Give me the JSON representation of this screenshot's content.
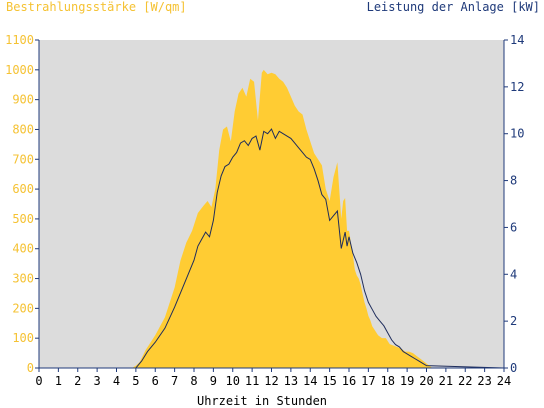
{
  "chart_data": {
    "type": "area",
    "left_axis_title": "Bestrahlungsstärke [W/qm]",
    "right_axis_title": "Leistung der Anlage [kW]",
    "xlabel": "Uhrzeit in Stunden",
    "xlim": [
      0,
      24
    ],
    "ylim_left": [
      0,
      1100
    ],
    "ylim_right": [
      0,
      14
    ],
    "x_ticks": [
      "0",
      "1",
      "2",
      "3",
      "4",
      "5",
      "6",
      "7",
      "8",
      "9",
      "10",
      "11",
      "12",
      "13",
      "14",
      "15",
      "16",
      "17",
      "18",
      "19",
      "20",
      "21",
      "22",
      "23",
      "24"
    ],
    "y_left_ticks": [
      "0",
      "100",
      "200",
      "300",
      "400",
      "500",
      "600",
      "700",
      "800",
      "900",
      "1000",
      "1100"
    ],
    "y_right_ticks": [
      "0",
      "2",
      "4",
      "6",
      "8",
      "10",
      "12",
      "14"
    ],
    "grid": false,
    "colors": {
      "plot_background": "#dcdcdc",
      "irradiance_fill": "#ffcc33",
      "power_line": "#1f2d5c",
      "left_axis_text": "#f5c233",
      "right_axis_text": "#1f3a7a",
      "axis_color": "#1f3a7a"
    },
    "series": [
      {
        "axis": "left",
        "style": "area",
        "x": [
          0,
          4.8,
          5.0,
          5.2,
          5.5,
          6.0,
          6.5,
          7.0,
          7.3,
          7.6,
          7.9,
          8.2,
          8.5,
          8.7,
          8.9,
          9.1,
          9.3,
          9.5,
          9.7,
          9.9,
          10.1,
          10.3,
          10.5,
          10.7,
          10.9,
          11.1,
          11.3,
          11.5,
          11.6,
          11.8,
          12.0,
          12.2,
          12.4,
          12.6,
          12.8,
          13.0,
          13.2,
          13.4,
          13.6,
          13.8,
          14.0,
          14.2,
          14.4,
          14.6,
          14.8,
          15.0,
          15.2,
          15.4,
          15.6,
          15.7,
          15.8,
          15.9,
          16.0,
          16.1,
          16.2,
          16.3,
          16.4,
          16.5,
          16.6,
          16.7,
          16.8,
          16.9,
          17.0,
          17.1,
          17.2,
          17.3,
          17.5,
          17.7,
          17.9,
          18.1,
          18.3,
          18.5,
          18.7,
          18.9,
          19.1,
          19.3,
          19.5,
          19.7,
          19.9,
          20.1,
          20.3,
          24
        ],
        "values": [
          0,
          0,
          8,
          20,
          60,
          110,
          170,
          270,
          360,
          420,
          460,
          520,
          545,
          560,
          540,
          600,
          730,
          800,
          810,
          760,
          860,
          920,
          940,
          910,
          970,
          960,
          830,
          990,
          1000,
          985,
          990,
          985,
          970,
          960,
          940,
          910,
          880,
          860,
          850,
          800,
          760,
          720,
          700,
          680,
          600,
          560,
          640,
          690,
          500,
          560,
          570,
          460,
          460,
          420,
          380,
          330,
          310,
          300,
          280,
          250,
          220,
          200,
          175,
          160,
          140,
          130,
          110,
          100,
          100,
          80,
          75,
          70,
          65,
          55,
          55,
          50,
          40,
          30,
          20,
          10,
          0,
          0
        ]
      },
      {
        "axis": "right",
        "style": "line",
        "x": [
          0,
          5.0,
          5.3,
          5.6,
          6.0,
          6.5,
          7.0,
          7.5,
          8.0,
          8.2,
          8.4,
          8.6,
          8.8,
          9.0,
          9.2,
          9.4,
          9.6,
          9.8,
          10.0,
          10.2,
          10.4,
          10.6,
          10.8,
          11.0,
          11.2,
          11.4,
          11.6,
          11.8,
          12.0,
          12.2,
          12.4,
          12.6,
          12.8,
          13.0,
          13.2,
          13.4,
          13.6,
          13.8,
          14.0,
          14.2,
          14.4,
          14.6,
          14.8,
          15.0,
          15.2,
          15.4,
          15.6,
          15.8,
          15.9,
          16.0,
          16.2,
          16.4,
          16.6,
          16.8,
          17.0,
          17.2,
          17.4,
          17.6,
          17.8,
          18.0,
          18.2,
          18.4,
          18.6,
          18.8,
          19.0,
          19.2,
          19.4,
          19.6,
          19.8,
          20.0,
          24
        ],
        "values": [
          0,
          0,
          0.3,
          0.7,
          1.1,
          1.7,
          2.6,
          3.6,
          4.6,
          5.2,
          5.5,
          5.8,
          5.6,
          6.3,
          7.5,
          8.2,
          8.6,
          8.7,
          9.0,
          9.2,
          9.6,
          9.7,
          9.5,
          9.8,
          9.9,
          9.3,
          10.1,
          10.0,
          10.2,
          9.8,
          10.1,
          10.0,
          9.9,
          9.8,
          9.6,
          9.4,
          9.2,
          9.0,
          8.9,
          8.5,
          8.0,
          7.4,
          7.2,
          6.3,
          6.5,
          6.7,
          5.1,
          5.8,
          5.2,
          5.6,
          4.9,
          4.5,
          4.0,
          3.3,
          2.8,
          2.5,
          2.2,
          2.0,
          1.8,
          1.5,
          1.2,
          1.0,
          0.9,
          0.7,
          0.6,
          0.5,
          0.4,
          0.3,
          0.2,
          0.1,
          0
        ]
      }
    ]
  }
}
